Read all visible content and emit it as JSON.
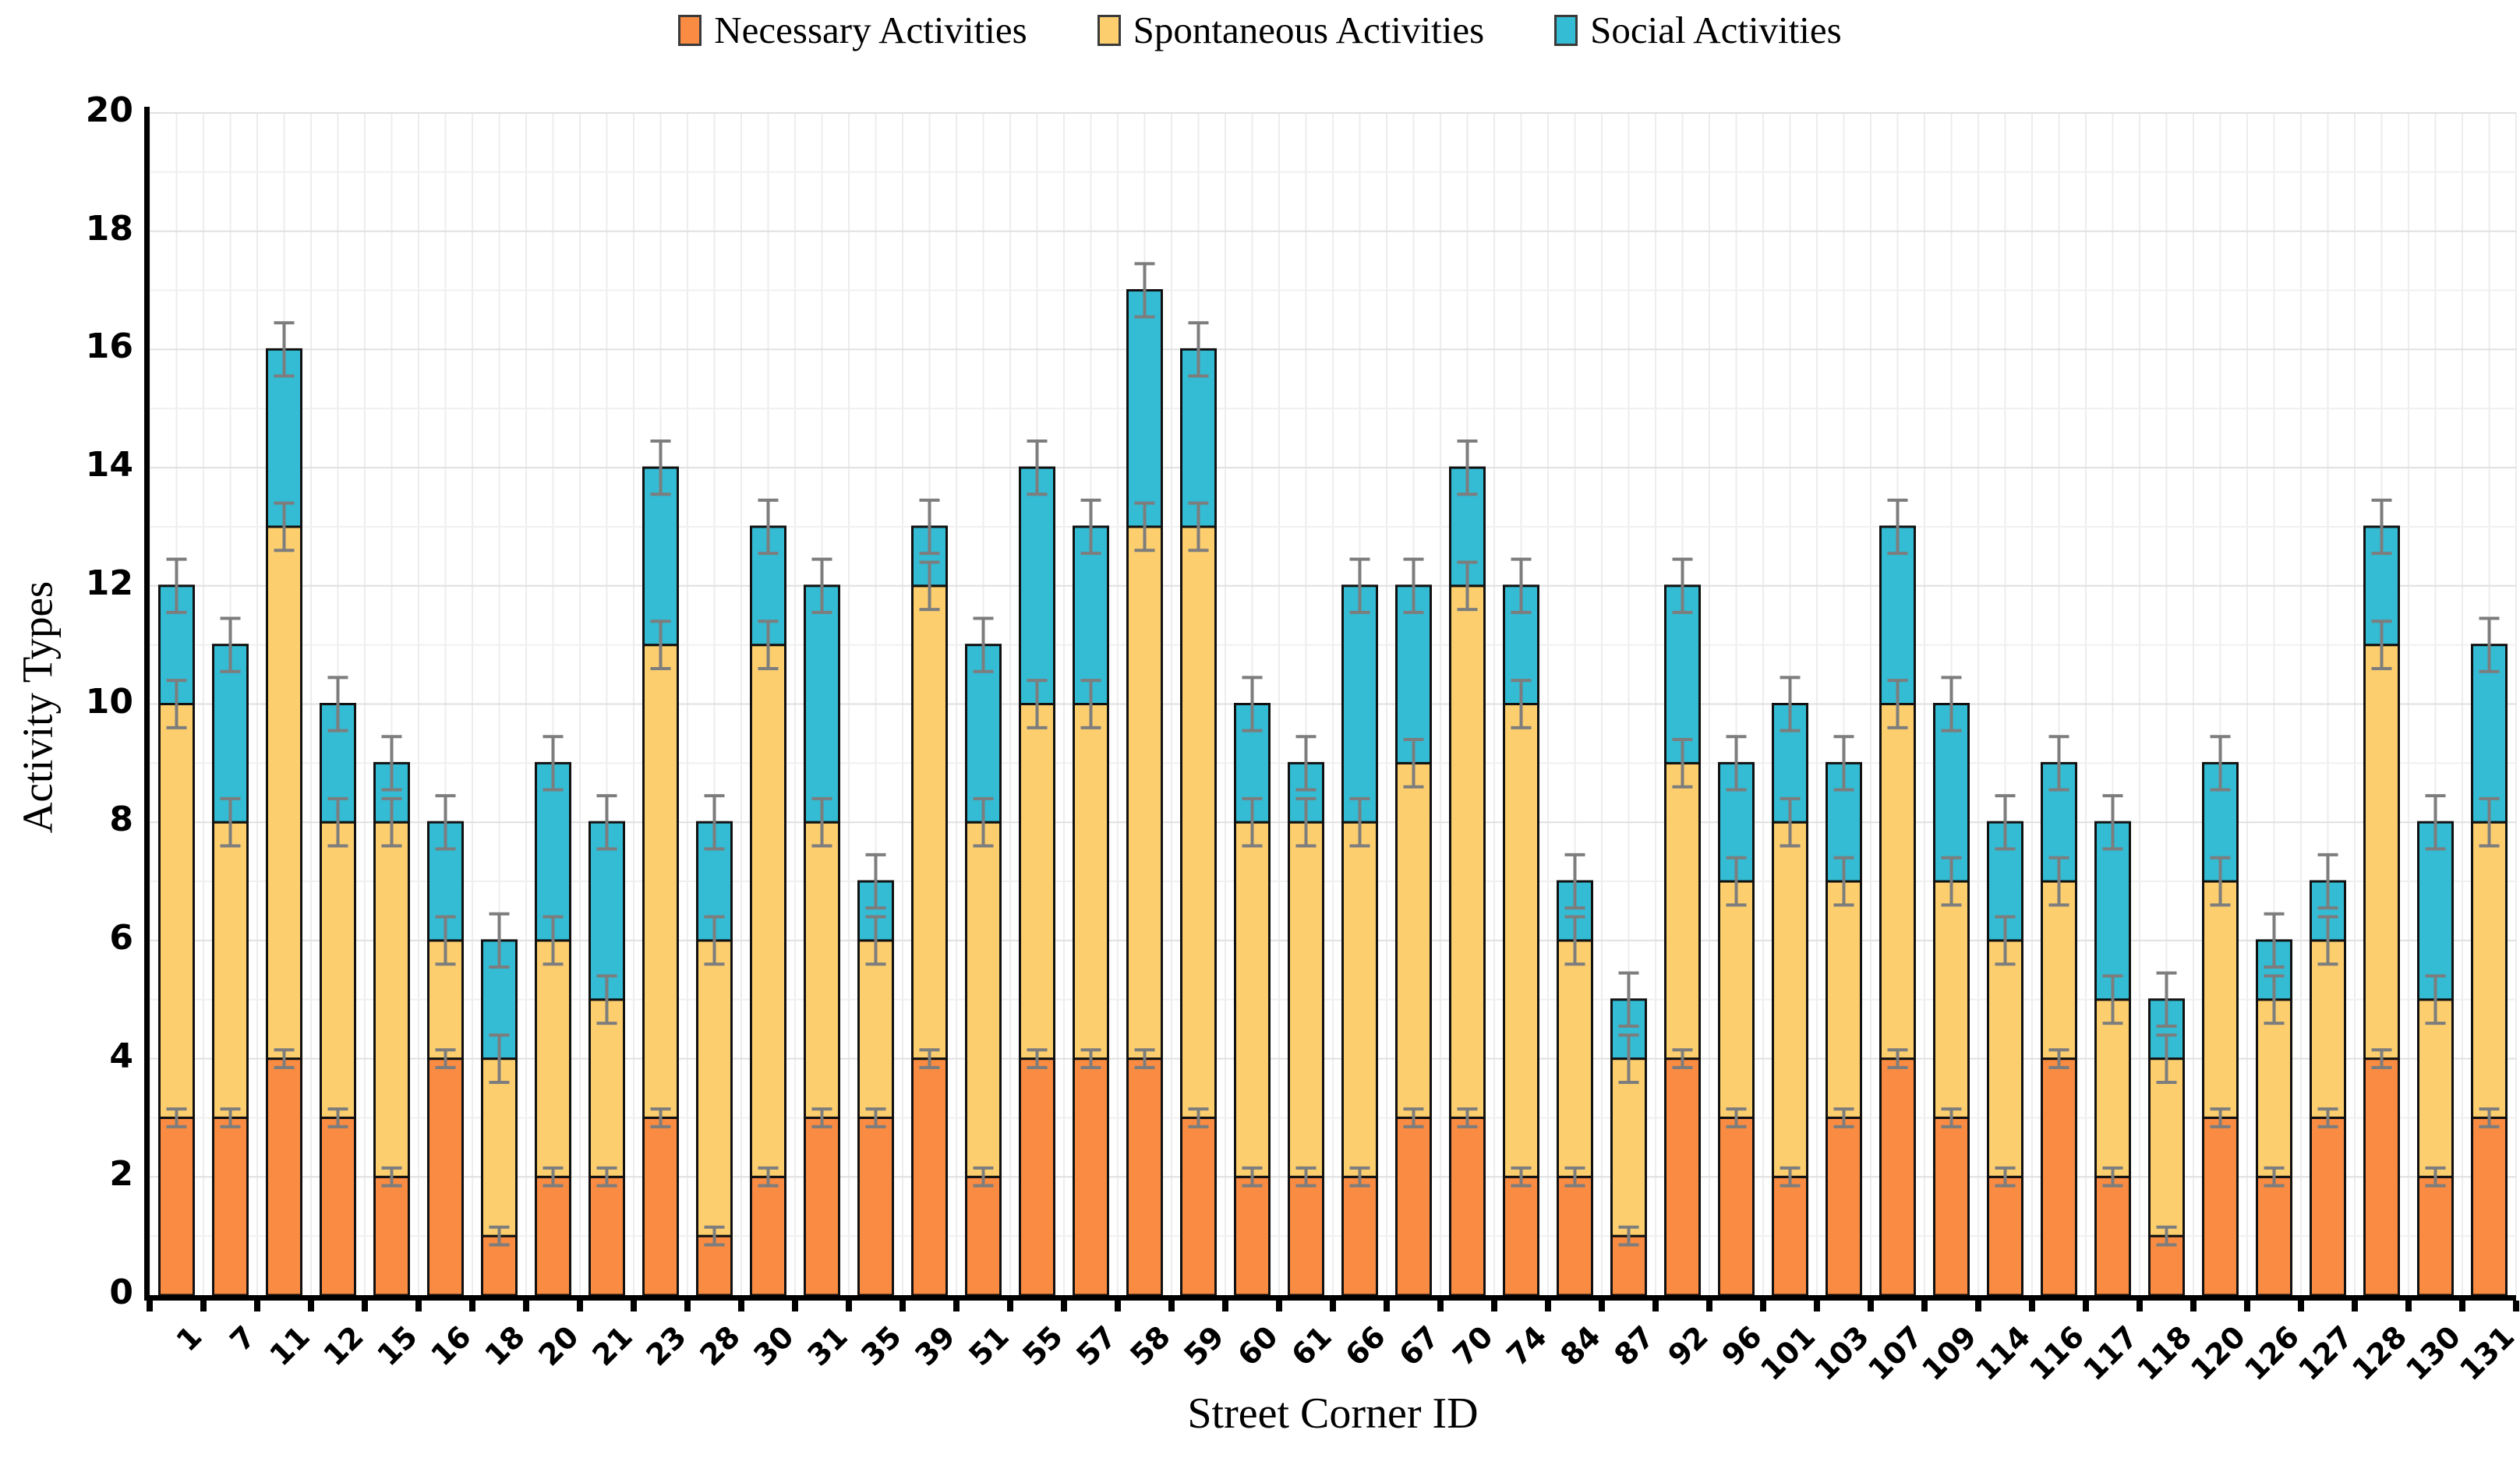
{
  "legend": {
    "items": [
      {
        "label": "Necessary Activities",
        "color": "#F98B42"
      },
      {
        "label": "Spontaneous Activities",
        "color": "#FCCE6E"
      },
      {
        "label": "Social Activities",
        "color": "#33BCD4"
      }
    ]
  },
  "y_axis": {
    "label": "Activity Types",
    "min": 0,
    "max": 20,
    "tick_step": 2,
    "ticks": [
      "0",
      "2",
      "4",
      "6",
      "8",
      "10",
      "12",
      "14",
      "16",
      "18",
      "20"
    ]
  },
  "x_axis": {
    "label": "Street Corner ID"
  },
  "chart_data": {
    "type": "bar",
    "subtype": "stacked-vertical-with-error-bars",
    "title": "",
    "xlabel": "Street Corner ID",
    "ylabel": "Activity Types",
    "ylim": [
      0,
      20
    ],
    "grid": true,
    "legend_position": "top-center",
    "error_bar_color": "#7d7d7d",
    "bar_outline_color": "#111111",
    "categories": [
      "1",
      "7",
      "11",
      "12",
      "15",
      "16",
      "18",
      "20",
      "21",
      "23",
      "28",
      "30",
      "31",
      "35",
      "39",
      "51",
      "55",
      "57",
      "58",
      "59",
      "60",
      "61",
      "66",
      "67",
      "70",
      "74",
      "84",
      "87",
      "92",
      "96",
      "101",
      "103",
      "107",
      "109",
      "114",
      "116",
      "117",
      "118",
      "120",
      "126",
      "127",
      "128",
      "130",
      "131"
    ],
    "series": [
      {
        "name": "Necessary Activities",
        "color": "#F98B42",
        "error": 0.15,
        "values": [
          3,
          3,
          4,
          3,
          2,
          4,
          1,
          2,
          2,
          3,
          1,
          2,
          3,
          3,
          4,
          2,
          4,
          4,
          4,
          3,
          2,
          2,
          2,
          3,
          3,
          2,
          2,
          1,
          4,
          3,
          2,
          3,
          4,
          3,
          2,
          4,
          2,
          1,
          3,
          2,
          3,
          4,
          2,
          3
        ]
      },
      {
        "name": "Spontaneous Activities",
        "color": "#FCCE6E",
        "error": 0.4,
        "values": [
          7,
          5,
          9,
          5,
          6,
          2,
          3,
          4,
          3,
          8,
          5,
          9,
          5,
          3,
          8,
          6,
          6,
          6,
          9,
          10,
          6,
          6,
          6,
          6,
          9,
          8,
          4,
          3,
          5,
          4,
          6,
          4,
          6,
          4,
          4,
          3,
          3,
          3,
          4,
          3,
          3,
          7,
          3,
          5
        ]
      },
      {
        "name": "Social Activities",
        "color": "#33BCD4",
        "error": 0.45,
        "values": [
          2,
          3,
          3,
          2,
          1,
          2,
          2,
          3,
          3,
          3,
          2,
          2,
          4,
          1,
          1,
          3,
          4,
          3,
          4,
          3,
          2,
          1,
          4,
          3,
          2,
          2,
          1,
          1,
          3,
          2,
          2,
          2,
          3,
          3,
          2,
          2,
          3,
          1,
          2,
          1,
          1,
          2,
          3,
          3
        ]
      }
    ],
    "stacked_totals": [
      12,
      11,
      16,
      10,
      9,
      8,
      6,
      9,
      8,
      14,
      8,
      13,
      12,
      7,
      13,
      11,
      14,
      13,
      17,
      16,
      10,
      9,
      12,
      12,
      14,
      12,
      7,
      5,
      12,
      9,
      10,
      9,
      13,
      10,
      8,
      9,
      8,
      5,
      9,
      6,
      7,
      13,
      8,
      11
    ]
  }
}
